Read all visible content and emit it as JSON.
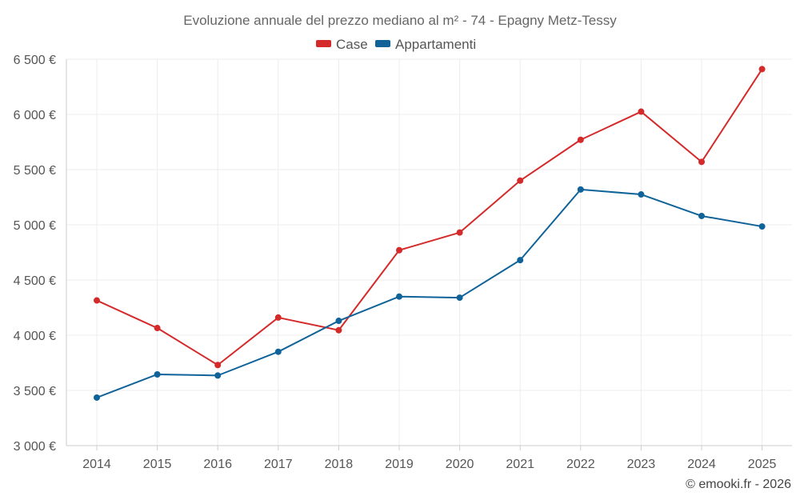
{
  "chart_data": {
    "type": "line",
    "title": "Evoluzione annuale del prezzo mediano al m² - 74 - Epagny Metz-Tessy",
    "categories": [
      "2014",
      "2015",
      "2016",
      "2017",
      "2018",
      "2019",
      "2020",
      "2021",
      "2022",
      "2023",
      "2024",
      "2025"
    ],
    "series": [
      {
        "name": "Case",
        "color": "#d42a2a",
        "values": [
          4315,
          4065,
          3730,
          4160,
          4045,
          4770,
          4930,
          5400,
          5770,
          6025,
          5570,
          6410
        ]
      },
      {
        "name": "Appartamenti",
        "color": "#106399",
        "values": [
          3435,
          3645,
          3635,
          3850,
          4130,
          4350,
          4340,
          4680,
          5320,
          5275,
          5080,
          4985
        ]
      }
    ],
    "ylim": [
      3000,
      6500
    ],
    "yticks": [
      {
        "value": 3000,
        "label": "3 000 €"
      },
      {
        "value": 3500,
        "label": "3 500 €"
      },
      {
        "value": 4000,
        "label": "4 000 €"
      },
      {
        "value": 4500,
        "label": "4 500 €"
      },
      {
        "value": 5000,
        "label": "5 000 €"
      },
      {
        "value": 5500,
        "label": "5 500 €"
      },
      {
        "value": 6000,
        "label": "6 000 €"
      },
      {
        "value": 6500,
        "label": "6 500 €"
      }
    ],
    "grid": true,
    "legend_position": "top-center",
    "xlabel": "",
    "ylabel": ""
  },
  "footer": {
    "copyright": "© emooki.fr - 2026"
  }
}
